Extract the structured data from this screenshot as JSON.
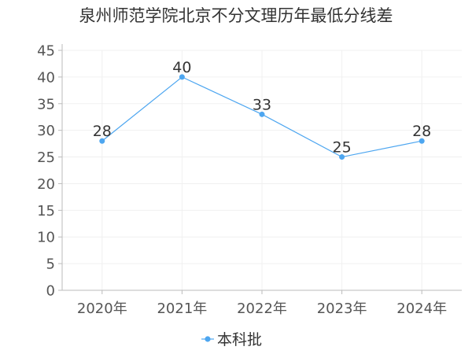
{
  "chart_data": {
    "type": "line",
    "title": "泉州师范学院北京不分文理历年最低分线差",
    "categories": [
      "2020年",
      "2021年",
      "2022年",
      "2023年",
      "2024年"
    ],
    "series": [
      {
        "name": "本科批",
        "values": [
          28,
          40,
          33,
          25,
          28
        ],
        "color": "#4da6f0"
      }
    ],
    "ylim": [
      0,
      45
    ],
    "yticks": [
      0,
      5,
      10,
      15,
      20,
      25,
      30,
      35,
      40,
      45
    ],
    "grid": true,
    "legend_position": "bottom-center",
    "xlabel": "",
    "ylabel": ""
  }
}
